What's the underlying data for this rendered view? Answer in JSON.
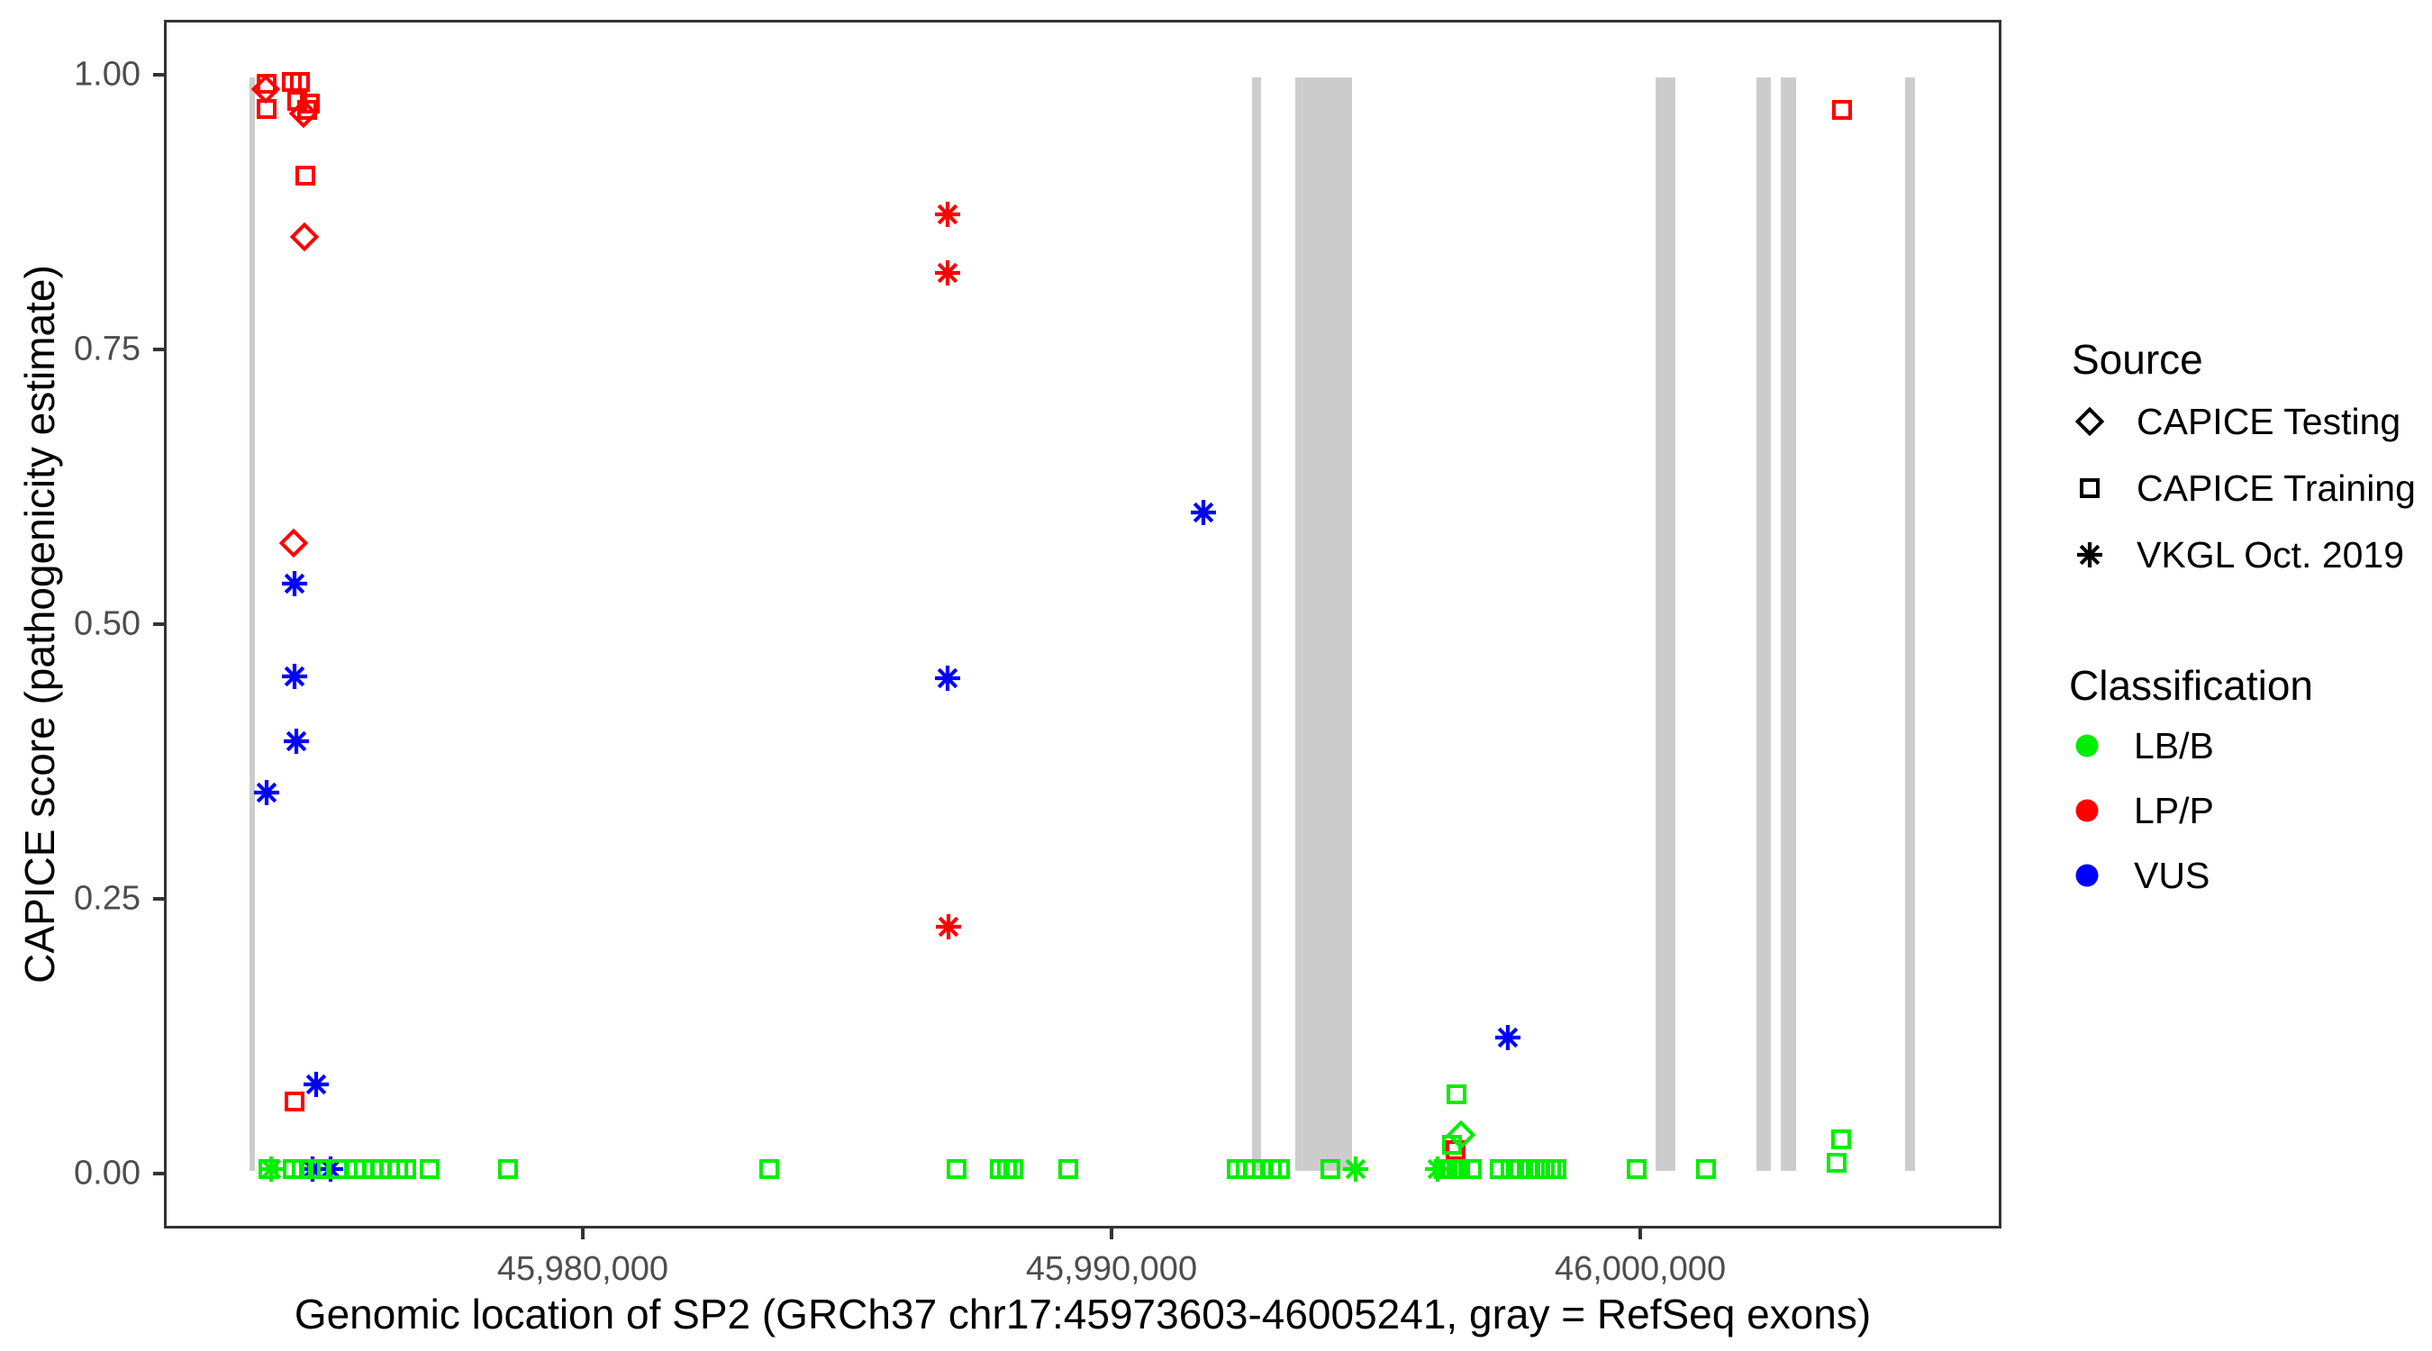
{
  "chart_data": {
    "type": "scatter",
    "xlabel": "Genomic location of SP2 (GRCh37 chr17:45973603-46005241, gray = RefSeq exons)",
    "ylabel": "CAPICE score (pathogenicity estimate)",
    "x_range_bp": [
      45972080,
      46006830
    ],
    "y_range": [
      -0.05,
      1.05
    ],
    "grid": "off",
    "x_ticks": [
      {
        "value": 45980000,
        "label": "45,980,000"
      },
      {
        "value": 45990000,
        "label": "45,990,000"
      },
      {
        "value": 46000000,
        "label": "46,000,000"
      }
    ],
    "y_ticks": [
      {
        "value": 0.0,
        "label": "0.00"
      },
      {
        "value": 0.25,
        "label": "0.25"
      },
      {
        "value": 0.5,
        "label": "0.50"
      },
      {
        "value": 0.75,
        "label": "0.75"
      },
      {
        "value": 1.0,
        "label": "1.00"
      }
    ],
    "exon_color": "#CCCCCC",
    "exons": [
      [
        45973650,
        45973760
      ],
      [
        45992660,
        45992830
      ],
      [
        45993490,
        45994570
      ],
      [
        46000320,
        46000700
      ],
      [
        46002240,
        46002510
      ],
      [
        46002690,
        46002980
      ],
      [
        46005050,
        46005245
      ]
    ],
    "series": [
      {
        "classification": "LP/P",
        "source": "CAPICE Training",
        "shape": "square",
        "color": "#FF0000",
        "points": [
          [
            45973970,
            0.994
          ],
          [
            45973975,
            0.971
          ],
          [
            45974463,
            0.996
          ],
          [
            45974616,
            0.996
          ],
          [
            45974560,
            0.978
          ],
          [
            45974798,
            0.976
          ],
          [
            45974740,
            0.97
          ],
          [
            45974718,
            0.91
          ],
          [
            45974514,
            0.064
          ],
          [
            45996530,
            0.019
          ],
          [
            46003850,
            0.97
          ]
        ]
      },
      {
        "classification": "LP/P",
        "source": "CAPICE Testing",
        "shape": "diamond",
        "color": "#FF0000",
        "points": [
          [
            45973965,
            0.989
          ],
          [
            45974684,
            0.967
          ],
          [
            45974701,
            0.854
          ],
          [
            45974497,
            0.574
          ]
        ]
      },
      {
        "classification": "LP/P",
        "source": "VKGL Oct. 2019",
        "shape": "asterisk",
        "color": "#FF0000",
        "points": [
          [
            45986900,
            0.875
          ],
          [
            45986900,
            0.821
          ],
          [
            45986905,
            0.223
          ]
        ]
      },
      {
        "classification": "VUS",
        "source": "VKGL Oct. 2019",
        "shape": "asterisk",
        "color": "#0000FF",
        "points": [
          [
            45974514,
            0.537
          ],
          [
            45974514,
            0.452
          ],
          [
            45974548,
            0.393
          ],
          [
            45973969,
            0.346
          ],
          [
            45974923,
            0.079
          ],
          [
            45986890,
            0.451
          ],
          [
            45991740,
            0.602
          ],
          [
            45997514,
            0.122
          ],
          [
            45974855,
            0.002
          ],
          [
            45975196,
            0.002
          ]
        ]
      },
      {
        "classification": "LB/B",
        "source": "CAPICE Training",
        "shape": "square",
        "color": "#00EE00",
        "points": [
          [
            45974003,
            0.002
          ],
          [
            45974480,
            0.002
          ],
          [
            45974650,
            0.002
          ],
          [
            45974820,
            0.002
          ],
          [
            45974990,
            0.002
          ],
          [
            45975330,
            0.002
          ],
          [
            45975670,
            0.002
          ],
          [
            45975830,
            0.002
          ],
          [
            45975990,
            0.002
          ],
          [
            45976150,
            0.002
          ],
          [
            45976310,
            0.002
          ],
          [
            45976470,
            0.002
          ],
          [
            45976630,
            0.002
          ],
          [
            45977070,
            0.002
          ],
          [
            45978550,
            0.002
          ],
          [
            45983510,
            0.002
          ],
          [
            45987070,
            0.002
          ],
          [
            45987890,
            0.002
          ],
          [
            45988020,
            0.002
          ],
          [
            45988140,
            0.002
          ],
          [
            45989180,
            0.002
          ],
          [
            45992380,
            0.002
          ],
          [
            45992550,
            0.002
          ],
          [
            45992700,
            0.002
          ],
          [
            45992860,
            0.002
          ],
          [
            45993050,
            0.002
          ],
          [
            45993200,
            0.002
          ],
          [
            45994160,
            0.002
          ],
          [
            45996300,
            0.002
          ],
          [
            45996380,
            0.002
          ],
          [
            45996460,
            0.002
          ],
          [
            45996540,
            0.002
          ],
          [
            45996620,
            0.002
          ],
          [
            45996840,
            0.002
          ],
          [
            45997370,
            0.002
          ],
          [
            45997570,
            0.002
          ],
          [
            45997740,
            0.002
          ],
          [
            45997940,
            0.002
          ],
          [
            45998110,
            0.002
          ],
          [
            45998220,
            0.002
          ],
          [
            45998340,
            0.002
          ],
          [
            45998450,
            0.002
          ],
          [
            45999955,
            0.002
          ],
          [
            46001280,
            0.002
          ],
          [
            45996543,
            0.07
          ],
          [
            45996463,
            0.024
          ],
          [
            46003845,
            0.029
          ],
          [
            46003753,
            0.008
          ]
        ]
      },
      {
        "classification": "LB/B",
        "source": "CAPICE Testing",
        "shape": "diamond",
        "color": "#00EE00",
        "points": [
          [
            45996623,
            0.033
          ]
        ]
      },
      {
        "classification": "LB/B",
        "source": "VKGL Oct. 2019",
        "shape": "asterisk",
        "color": "#00EE00",
        "points": [
          [
            45974054,
            0.002
          ],
          [
            45994640,
            0.002
          ],
          [
            45996180,
            0.002
          ]
        ]
      }
    ]
  },
  "legend": {
    "source": {
      "title": "Source",
      "items": [
        {
          "label": "CAPICE Testing",
          "shape": "diamond"
        },
        {
          "label": "CAPICE Training",
          "shape": "square"
        },
        {
          "label": "VKGL Oct. 2019",
          "shape": "asterisk"
        }
      ]
    },
    "classification": {
      "title": "Classification",
      "items": [
        {
          "label": "LB/B",
          "color": "#00EE00"
        },
        {
          "label": "LP/P",
          "color": "#FF0000"
        },
        {
          "label": "VUS",
          "color": "#0000FF"
        }
      ]
    }
  }
}
